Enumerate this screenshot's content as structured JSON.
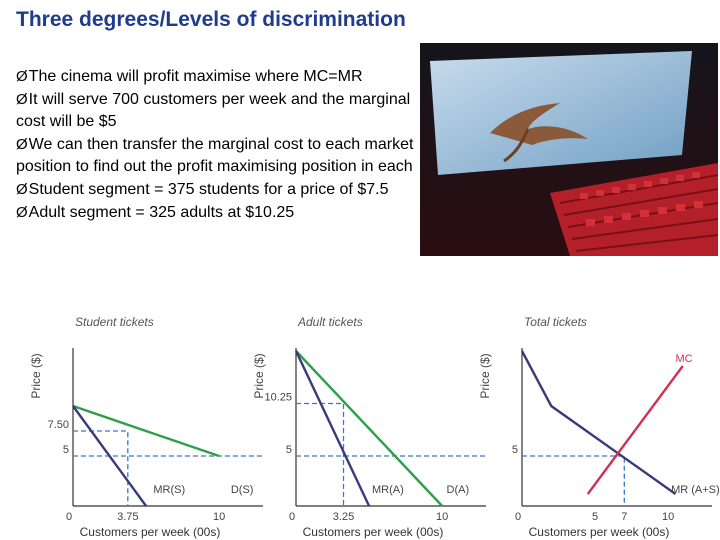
{
  "slide": {
    "title": "Three degrees/Levels of discrimination",
    "bullet_glyph": "Ø",
    "bullets": [
      "The cinema will profit maximise where MC=MR",
      "It will serve 700 customers per week and the marginal cost will be $5",
      "We can then transfer the marginal cost to each market position to find out the profit maximising position in each",
      "Student segment = 375 students for a price of $7.5",
      "Adult segment = 325 adults at $10.25"
    ],
    "photo_icon": "cinema-auditorium-photo"
  },
  "colors": {
    "title": "#1f3b8c",
    "demand": "#2e9e4a",
    "mr": "#3a3a7a",
    "mc": "#d03050",
    "guide": "#3a78c8",
    "axis_text": "#555555"
  },
  "chart_data": [
    {
      "type": "line",
      "title": "Student tickets",
      "ylabel": "Price ($)",
      "xlabel": "Customers per week (00s)",
      "xlim": [
        0,
        13
      ],
      "ylim": [
        0,
        15
      ],
      "x_ticks": [
        {
          "v": 0,
          "label": "0"
        },
        {
          "v": 3.75,
          "label": "3.75"
        },
        {
          "v": 10,
          "label": "10"
        }
      ],
      "y_ticks": [
        {
          "v": 7.5,
          "label": "7.50"
        },
        {
          "v": 5,
          "label": "5"
        }
      ],
      "series": [
        {
          "name": "D(S)",
          "role": "demand",
          "points": [
            [
              0,
              10
            ],
            [
              10,
              5
            ]
          ],
          "label_at": [
            10.8,
            1.3
          ]
        },
        {
          "name": "MR(S)",
          "role": "mr",
          "points": [
            [
              0,
              10
            ],
            [
              5,
              0
            ]
          ],
          "label_at": [
            5.5,
            1.3
          ]
        }
      ],
      "guides": [
        {
          "points": [
            [
              0,
              7.5
            ],
            [
              3.75,
              7.5
            ],
            [
              3.75,
              0
            ]
          ]
        },
        {
          "points": [
            [
              0,
              5
            ],
            [
              13,
              5
            ]
          ]
        }
      ]
    },
    {
      "type": "line",
      "title": "Adult tickets",
      "ylabel": "Price ($)",
      "xlabel": "Customers per week (00s)",
      "xlim": [
        0,
        13
      ],
      "ylim": [
        0,
        15
      ],
      "x_ticks": [
        {
          "v": 0,
          "label": "0"
        },
        {
          "v": 3.25,
          "label": "3.25"
        },
        {
          "v": 10,
          "label": "10"
        }
      ],
      "y_ticks": [
        {
          "v": 10.25,
          "label": "10.25"
        },
        {
          "v": 5,
          "label": "5"
        }
      ],
      "series": [
        {
          "name": "D(A)",
          "role": "demand",
          "points": [
            [
              0,
              15.5
            ],
            [
              10,
              0
            ]
          ],
          "label_at": [
            10.3,
            1.3
          ]
        },
        {
          "name": "MR(A)",
          "role": "mr",
          "points": [
            [
              0,
              15.5
            ],
            [
              5,
              0
            ]
          ],
          "label_at": [
            5.2,
            1.3
          ]
        }
      ],
      "guides": [
        {
          "points": [
            [
              0,
              10.25
            ],
            [
              3.25,
              10.25
            ],
            [
              3.25,
              0
            ]
          ]
        },
        {
          "points": [
            [
              0,
              5
            ],
            [
              13,
              5
            ]
          ]
        }
      ]
    },
    {
      "type": "line",
      "title": "Total tickets",
      "ylabel": "Price ($)",
      "xlabel": "Customers per week (00s)",
      "xlim": [
        0,
        13
      ],
      "ylim": [
        0,
        15
      ],
      "x_ticks": [
        {
          "v": 0,
          "label": "0"
        },
        {
          "v": 5,
          "label": "5"
        },
        {
          "v": 7,
          "label": "7"
        },
        {
          "v": 10,
          "label": "10"
        }
      ],
      "y_ticks": [
        {
          "v": 5,
          "label": "5"
        }
      ],
      "series": [
        {
          "name": "",
          "role": "mr",
          "points": [
            [
              0,
              15.5
            ],
            [
              2,
              10
            ],
            [
              10.5,
              1.2
            ]
          ]
        },
        {
          "name": "MC",
          "role": "mc",
          "points": [
            [
              4.5,
              1.2
            ],
            [
              11,
              14
            ]
          ],
          "label_at": [
            10.5,
            14.4
          ]
        }
      ],
      "annotations": [
        {
          "text": "MR (A+S)",
          "at": [
            10.2,
            1.3
          ]
        }
      ],
      "guides": [
        {
          "points": [
            [
              0,
              5
            ],
            [
              7,
              5
            ],
            [
              7,
              0
            ]
          ]
        }
      ]
    }
  ]
}
